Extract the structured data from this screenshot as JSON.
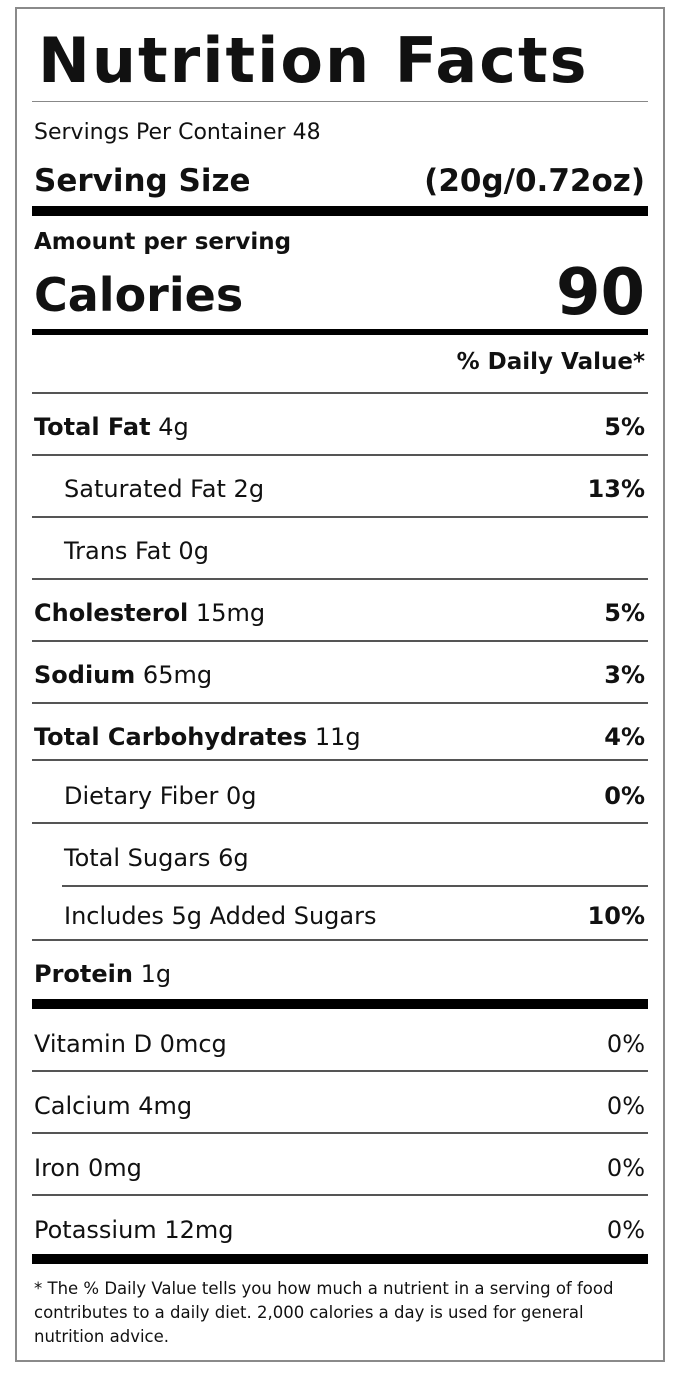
{
  "title": "Nutrition Facts",
  "servings_per_container": "Servings Per Container 48",
  "serving_size": {
    "label": "Serving Size",
    "value": "(20g/0.72oz)"
  },
  "amount_per_serving": "Amount per serving",
  "calories": {
    "label": "Calories",
    "value": "90"
  },
  "daily_value_header": "% Daily Value*",
  "nutrients": [
    {
      "name": "Total Fat",
      "amount": "4g",
      "dv": "5%"
    },
    {
      "name": "Saturated Fat",
      "amount": "2g",
      "dv": "13%"
    },
    {
      "name": "Trans Fat",
      "amount": "0g",
      "dv": ""
    },
    {
      "name": "Cholesterol",
      "amount": "15mg",
      "dv": "5%"
    },
    {
      "name": "Sodium",
      "amount": "65mg",
      "dv": "3%"
    },
    {
      "name": "Total Carbohydrates",
      "amount": "11g",
      "dv": "4%"
    },
    {
      "name": "Dietary Fiber",
      "amount": "0g",
      "dv": "0%"
    },
    {
      "name": "Total Sugars",
      "amount": "6g",
      "dv": ""
    },
    {
      "name": "Includes 5g Added Sugars",
      "amount": "",
      "dv": "10%"
    },
    {
      "name": "Protein",
      "amount": "1g",
      "dv": ""
    }
  ],
  "vitamins": [
    {
      "name": "Vitamin D 0mcg",
      "dv": "0%"
    },
    {
      "name": "Calcium 4mg",
      "dv": "0%"
    },
    {
      "name": "Iron 0mg",
      "dv": "0%"
    },
    {
      "name": "Potassium 12mg",
      "dv": "0%"
    }
  ],
  "footnote": "* The % Daily Value tells you how much a nutrient in a serving of food contributes to a daily diet. 2,000 calories a day is used for general nutrition advice."
}
